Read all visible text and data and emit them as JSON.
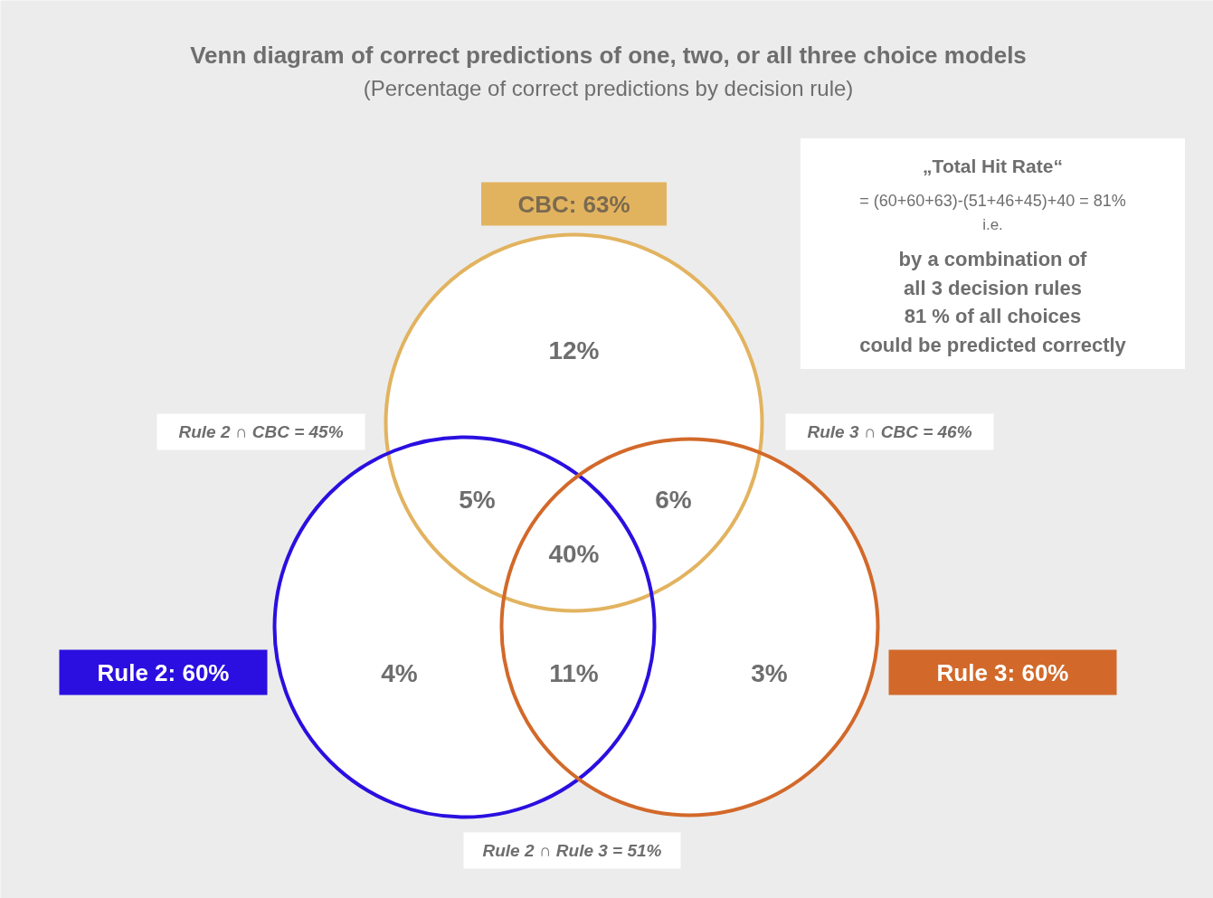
{
  "chart_data": {
    "type": "other",
    "title": "Venn diagram of correct predictions of one, two, or all three choice models",
    "subtitle": "(Percentage of correct predictions by decision rule)",
    "categories": [
      null,
      null,
      null,
      null,
      null,
      null,
      null
    ],
    "values": [
      12,
      5,
      6,
      40,
      4,
      11,
      3
    ],
    "value_labels": [
      "12%",
      "5%",
      "6%",
      "40%",
      "4%",
      "11%",
      "3%"
    ],
    "annotations": [
      "CBC: 63%",
      "Rule 2: 60%",
      "Rule 3: 60%",
      "Rule 2 ∩ CBC = 45%",
      "Rule 3 ∩ CBC = 46%",
      "Rule 2 ∩ Rule 3 = 51%",
      "„Total Hit Rate“",
      "= (60+60+63)-(51+46+45)+40 = 81%",
      "i.e.",
      "by a combination of",
      "all 3 decision rules",
      "81 % of all choices",
      "could be predicted correctly"
    ]
  }
}
